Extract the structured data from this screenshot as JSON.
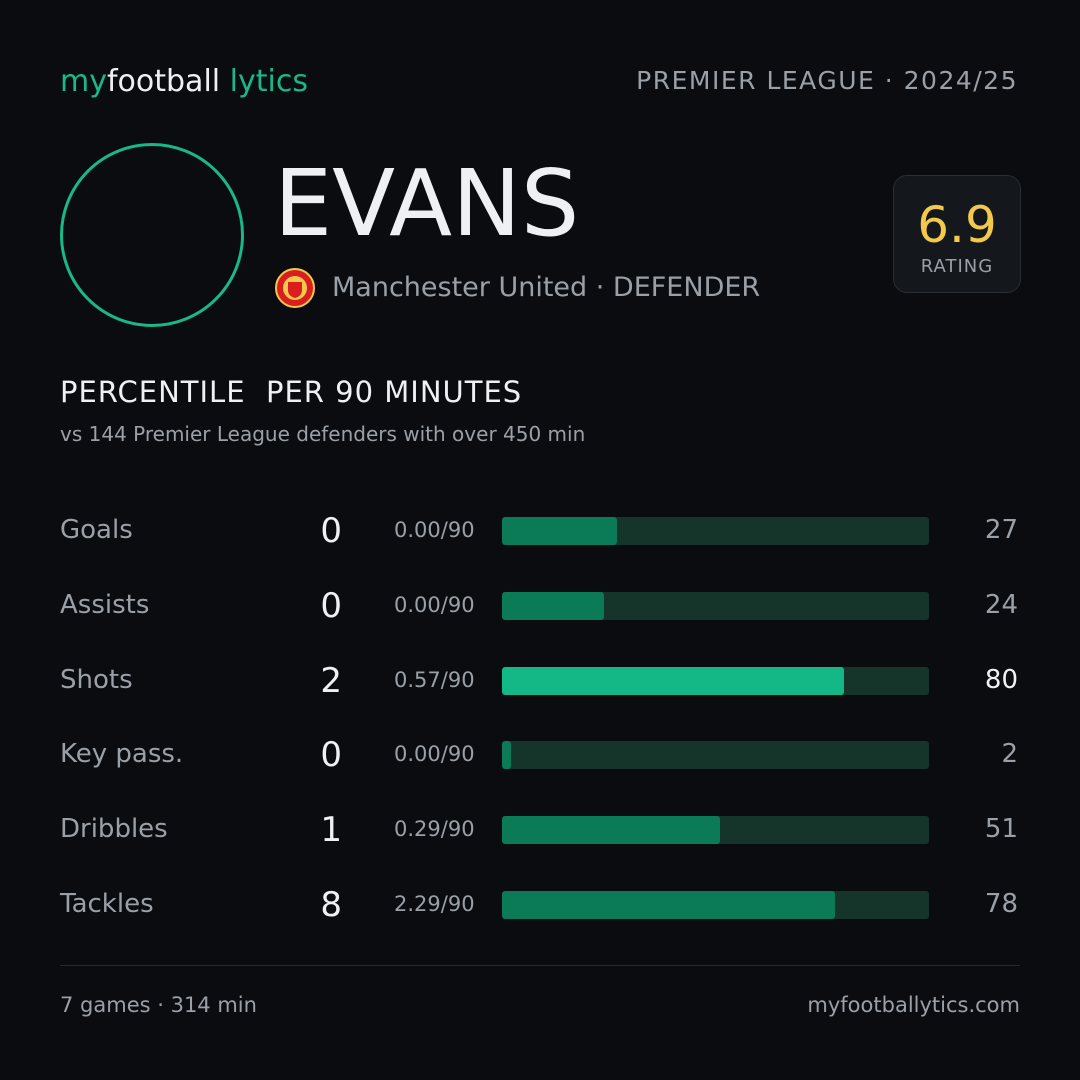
{
  "header": {
    "brand": [
      "my",
      "football",
      "lytics"
    ],
    "league": "PREMIER LEAGUE · 2024/25"
  },
  "player": {
    "name": "EVANS",
    "meta": "Manchester United · DEFENDER",
    "rating": 6.9,
    "rating_label": "RATING"
  },
  "section": {
    "title": "PERCENTILE  PER 90 MINUTES",
    "subtitle": "vs 144 Premier League defenders with over 450 min"
  },
  "stats": {
    "xlim": [
      0,
      100
    ],
    "rows": [
      {
        "label": "Goals",
        "total": 0,
        "per90": "0.00/90",
        "percentile": 27,
        "color": "#0b7a57"
      },
      {
        "label": "Assists",
        "total": 0,
        "per90": "0.00/90",
        "percentile": 24,
        "color": "#0b7a57"
      },
      {
        "label": "Shots",
        "total": 2,
        "per90": "0.57/90",
        "percentile": 80,
        "color": "#14b886"
      },
      {
        "label": "Key pass.",
        "total": 0,
        "per90": "0.00/90",
        "percentile": 2,
        "color": "#0b7a57"
      },
      {
        "label": "Dribbles",
        "total": 1,
        "per90": "0.29/90",
        "percentile": 51,
        "color": "#0b7a57"
      },
      {
        "label": "Tackles",
        "total": 8,
        "per90": "2.29/90",
        "percentile": 78,
        "color": "#0b7a57"
      }
    ]
  },
  "footer": {
    "left": "7 games · 314 min",
    "right": "myfootballytics.com"
  }
}
